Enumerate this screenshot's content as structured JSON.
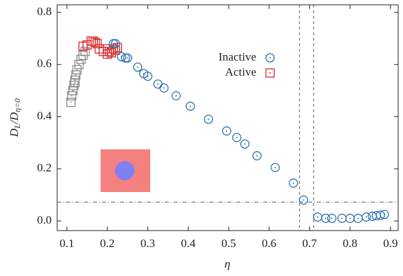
{
  "chart_data": {
    "type": "scatter",
    "xlabel": "η",
    "ylabel_parts": [
      "D",
      "L",
      "/D",
      "η=0"
    ],
    "xlim": [
      0.076,
      0.919
    ],
    "ylim": [
      -0.037,
      0.829
    ],
    "xticks": [
      0.1,
      0.2,
      0.3,
      0.4,
      0.5,
      0.6,
      0.7,
      0.8,
      0.9
    ],
    "yticks": [
      {
        "value": 0,
        "label": "0.0"
      },
      0.2,
      0.4,
      0.6,
      0.8
    ],
    "vlines": [
      0.675,
      0.71
    ],
    "hlines": [
      0.072
    ],
    "legend": "upper right",
    "series": [
      {
        "name": "Inactive",
        "marker": "circle",
        "color": "#2f6fad",
        "x": [
          0.215,
          0.22,
          0.235,
          0.245,
          0.25,
          0.275,
          0.29,
          0.3,
          0.325,
          0.34,
          0.37,
          0.405,
          0.45,
          0.495,
          0.52,
          0.54,
          0.57,
          0.615,
          0.66,
          0.685,
          0.72,
          0.74,
          0.755,
          0.78,
          0.8,
          0.82,
          0.84,
          0.855,
          0.865,
          0.875,
          0.885
        ],
        "values": [
          0.68,
          0.68,
          0.63,
          0.625,
          0.625,
          0.59,
          0.565,
          0.555,
          0.525,
          0.51,
          0.48,
          0.44,
          0.39,
          0.345,
          0.32,
          0.295,
          0.25,
          0.205,
          0.145,
          0.08,
          0.015,
          0.01,
          0.01,
          0.01,
          0.01,
          0.01,
          0.015,
          0.018,
          0.02,
          0.022,
          0.025
        ]
      },
      {
        "name": "Active",
        "marker": "square",
        "color": "#d62728",
        "x": [
          0.14,
          0.15,
          0.16,
          0.165,
          0.17,
          0.175,
          0.18,
          0.19,
          0.2,
          0.205,
          0.21,
          0.215,
          0.22,
          0.225,
          0.2
        ],
        "values": [
          0.67,
          0.675,
          0.69,
          0.69,
          0.685,
          0.68,
          0.66,
          0.65,
          0.64,
          0.65,
          0.645,
          0.66,
          0.655,
          0.665,
          0.66
        ]
      },
      {
        "marker": "square",
        "color": "#8a8a8a",
        "x": [
          0.11,
          0.112,
          0.115,
          0.117,
          0.12,
          0.122,
          0.125,
          0.13,
          0.135,
          0.14,
          0.145,
          0.12
        ],
        "values": [
          0.455,
          0.48,
          0.5,
          0.52,
          0.54,
          0.56,
          0.58,
          0.6,
          0.62,
          0.635,
          0.65,
          0.53
        ]
      }
    ]
  }
}
